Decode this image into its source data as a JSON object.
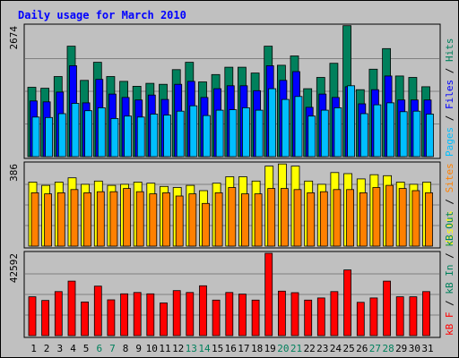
{
  "chart_data": {
    "type": "bar",
    "title": "Daily usage for March 2010",
    "title_color": "#0000ff",
    "days": [
      1,
      2,
      3,
      4,
      5,
      6,
      7,
      8,
      9,
      10,
      11,
      12,
      13,
      14,
      15,
      16,
      17,
      18,
      19,
      20,
      21,
      22,
      23,
      24,
      25,
      26,
      27,
      28,
      29,
      30,
      31
    ],
    "weekend_days": [
      6,
      7,
      13,
      14,
      20,
      21,
      27,
      28
    ],
    "day_label_colors": {
      "weekday": "#000000",
      "weekend": "#00805c"
    },
    "panels": [
      {
        "id": "traffic",
        "max_label": "2674",
        "ymax": 2674,
        "axis_legend": [
          {
            "text": "Pages",
            "color": "#00bfff"
          },
          {
            "text": " / ",
            "color": "#000000"
          },
          {
            "text": "Files",
            "color": "#0000ff"
          },
          {
            "text": " / ",
            "color": "#000000"
          },
          {
            "text": "Hits",
            "color": "#00805c"
          }
        ],
        "series": [
          {
            "name": "Hits",
            "color": "#00805c",
            "values": [
              1420,
              1400,
              1640,
              2260,
              1560,
              1930,
              1640,
              1540,
              1440,
              1500,
              1480,
              1780,
              1930,
              1530,
              1680,
              1830,
              1830,
              1710,
              2260,
              1870,
              2060,
              1390,
              1620,
              1910,
              2680,
              1370,
              1790,
              2210,
              1650,
              1620,
              1430
            ]
          },
          {
            "name": "Files",
            "color": "#0000ff",
            "values": [
              1140,
              1120,
              1320,
              1860,
              1100,
              1580,
              1280,
              1210,
              1160,
              1260,
              1170,
              1480,
              1540,
              1210,
              1390,
              1450,
              1450,
              1350,
              1860,
              1560,
              1740,
              1010,
              1280,
              1210,
              1430,
              1080,
              1370,
              1650,
              1160,
              1160,
              1160
            ]
          },
          {
            "name": "Pages",
            "color": "#00bfff",
            "values": [
              810,
              800,
              880,
              1090,
              940,
              1000,
              780,
              830,
              810,
              870,
              850,
              930,
              1040,
              840,
              950,
              960,
              1000,
              950,
              1390,
              1170,
              1230,
              830,
              950,
              1000,
              1450,
              880,
              1060,
              1100,
              920,
              930,
              870
            ]
          }
        ]
      },
      {
        "id": "visitors",
        "max_label": "386",
        "ymax": 386,
        "axis_legend": [
          {
            "text": "Visits",
            "color": "#ffff00"
          },
          {
            "text": " / ",
            "color": "#000000"
          },
          {
            "text": "Sites",
            "color": "#ff8000"
          }
        ],
        "series": [
          {
            "name": "Visits",
            "color": "#ffff00",
            "values": [
              300,
              285,
              300,
              320,
              290,
              305,
              285,
              290,
              300,
              295,
              280,
              275,
              285,
              260,
              295,
              325,
              325,
              305,
              375,
              385,
              375,
              305,
              290,
              345,
              340,
              315,
              335,
              330,
              300,
              290,
              300
            ]
          },
          {
            "name": "Sites",
            "color": "#ff8000",
            "values": [
              250,
              245,
              250,
              265,
              250,
              255,
              255,
              270,
              255,
              245,
              250,
              235,
              245,
              200,
              250,
              275,
              245,
              245,
              270,
              270,
              265,
              250,
              255,
              265,
              265,
              250,
              275,
              285,
              270,
              260,
              250
            ]
          }
        ]
      },
      {
        "id": "volume",
        "max_label": "42592",
        "ymax": 42592,
        "axis_legend": [
          {
            "text": "kB F",
            "color": "#ff0000"
          },
          {
            "text": " / ",
            "color": "#000000"
          },
          {
            "text": "kB In",
            "color": "#00805c"
          },
          {
            "text": " / ",
            "color": "#000000"
          },
          {
            "text": "kB Out",
            "color": "#00805c"
          }
        ],
        "series": [
          {
            "name": "kB F",
            "color": "#ff0000",
            "values": [
              20100,
              18200,
              22800,
              28200,
              17400,
              25600,
              18500,
              21600,
              22300,
              21600,
              16900,
              23300,
              22300,
              25800,
              18400,
              22300,
              21500,
              18400,
              42600,
              23000,
              22200,
              18400,
              19500,
              22800,
              34000,
              17200,
              19500,
              28200,
              20100,
              20100,
              22800
            ]
          }
        ]
      }
    ]
  }
}
